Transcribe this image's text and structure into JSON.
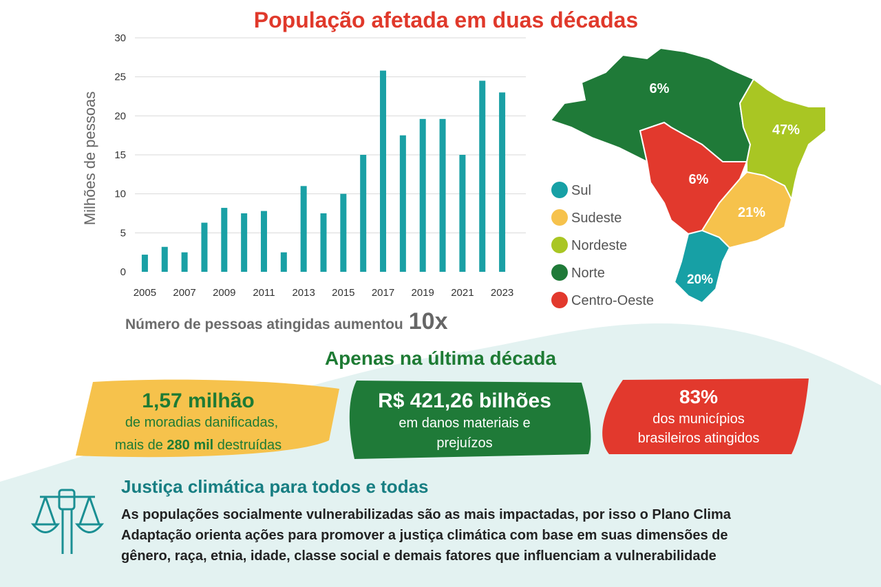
{
  "chart_data": {
    "type": "bar",
    "title": "População afetada em duas décadas",
    "y_label": "Milhões de pessoas",
    "categories": [
      "2005",
      null,
      "2007",
      null,
      "2009",
      null,
      "2011",
      null,
      "2013",
      null,
      "2015",
      null,
      "2017",
      null,
      "2019",
      null,
      "2021",
      null,
      "2023"
    ],
    "values": [
      2.2,
      3.2,
      2.5,
      6.3,
      8.2,
      7.5,
      7.8,
      2.5,
      11,
      7.5,
      10,
      15,
      25.8,
      17.5,
      19.6,
      19.6,
      15,
      24.5,
      23
    ],
    "color": "#1aa0a5",
    "ylim": [
      0,
      30
    ],
    "yticks": [
      0,
      5,
      10,
      15,
      20,
      25,
      30
    ],
    "grid": true
  },
  "subtitle": {
    "text": "Número de pessoas atingidas aumentou",
    "emphasis": "10x"
  },
  "map": {
    "regions": [
      {
        "name": "Sul",
        "label": "20%",
        "color": "#17a0a5"
      },
      {
        "name": "Sudeste",
        "label": "21%",
        "color": "#f6c24c"
      },
      {
        "name": "Nordeste",
        "label": "47%",
        "color": "#a9c623"
      },
      {
        "name": "Norte",
        "label": "6%",
        "color": "#1f7a38"
      },
      {
        "name": "Centro-Oeste",
        "label": "6%",
        "color": "#e2392d"
      }
    ]
  },
  "section_title": "Apenas na última década",
  "stats": [
    {
      "headline": "1,57 milhão",
      "line1": "de moradias danificadas,",
      "line2": [
        "mais de ",
        "280 mil",
        " destruídas"
      ]
    },
    {
      "headline": "R$ 421,26 bilhões",
      "line1": "em danos materiais e",
      "line2": [
        "prejuízos"
      ]
    },
    {
      "headline": "83%",
      "line1": "dos municípios",
      "line2": [
        "brasileiros atingidos"
      ]
    }
  ],
  "justice": {
    "title": "Justiça climática para todos e todas",
    "lines": [
      "As populações socialmente vulnerabilizadas são as mais impactadas, por isso o Plano Clima",
      "Adaptação orienta ações para promover a justiça climática com base em suas dimensões de",
      "gênero, raça, etnia, idade, classe social e demais fatores que influenciam a vulnerabilidade"
    ]
  }
}
